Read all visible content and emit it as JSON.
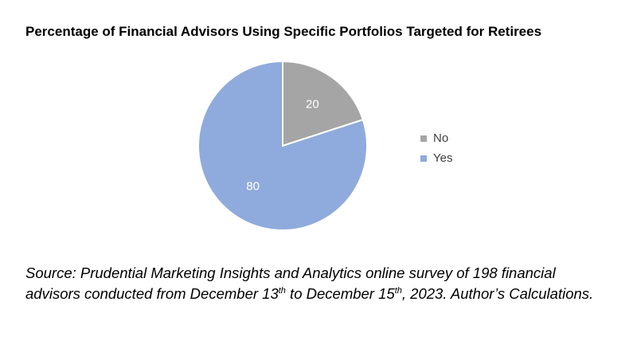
{
  "chart_data": {
    "type": "pie",
    "title": "Percentage of Financial Advisors Using Specific Portfolios Targeted for Retirees",
    "series": [
      {
        "label": "No",
        "value": 20,
        "color": "#a5a5a5"
      },
      {
        "label": "Yes",
        "value": 80,
        "color": "#8faadc"
      }
    ],
    "legend_position": "right"
  },
  "source": {
    "line1": "Source: Prudential Marketing Insights and Analytics online survey of 198 financial",
    "line2_a": "advisors conducted from December 13",
    "sup1": "th",
    "line2_b": " to December 15",
    "sup2": "th",
    "line2_c": ", 2023. Author’s Calculations."
  }
}
